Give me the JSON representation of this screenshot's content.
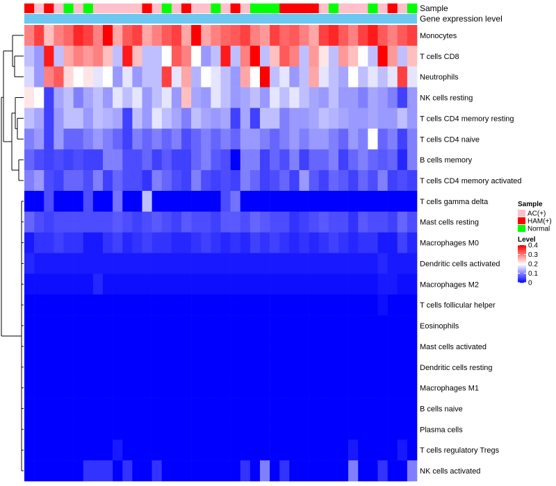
{
  "chart_data": {
    "type": "heatmap",
    "title": "",
    "color_scale": {
      "min": 0,
      "max": 0.4,
      "low": "#0000FF",
      "mid": "#FFFFFF",
      "high": "#FF0000"
    },
    "top_annotations": [
      {
        "name": "Sample"
      },
      {
        "name": "Gene expression level",
        "color": "#6CC8F0"
      }
    ],
    "samples": [
      "HAM(+)",
      "AC(+)",
      "HAM(+)",
      "AC(+)",
      "Normal",
      "AC(+)",
      "Normal",
      "AC(+)",
      "AC(+)",
      "AC(+)",
      "AC(+)",
      "AC(+)",
      "HAM(+)",
      "AC(+)",
      "Normal",
      "AC(+)",
      "HAM(+)",
      "AC(+)",
      "AC(+)",
      "Normal",
      "AC(+)",
      "HAM(+)",
      "AC(+)",
      "Normal",
      "Normal",
      "Normal",
      "HAM(+)",
      "HAM(+)",
      "HAM(+)",
      "HAM(+)",
      "AC(+)",
      "Normal",
      "AC(+)",
      "AC(+)",
      "AC(+)",
      "Normal",
      "AC(+)",
      "HAM(+)",
      "AC(+)",
      "Normal"
    ],
    "sample_colors": {
      "AC(+)": "#FFC0CB",
      "HAM(+)": "#FF0000",
      "Normal": "#00FF00"
    },
    "rows": [
      "Monocytes",
      "T cells CD8",
      "Neutrophils",
      "NK cells resting",
      "T cells CD4 memory resting",
      "T cells CD4 naive",
      "B cells memory",
      "T cells CD4 memory activated",
      "T cells gamma delta",
      "Mast cells resting",
      "Macrophages M0",
      "Dendritic cells activated",
      "Macrophages M2",
      "T cells follicular helper",
      "Eosinophils",
      "Mast cells activated",
      "Dendritic cells resting",
      "Macrophages M1",
      "B cells naive",
      "Plasma cells",
      "T cells regulatory  Tregs",
      "NK cells activated"
    ],
    "values": [
      [
        0.3,
        0.35,
        0.25,
        0.3,
        0.32,
        0.37,
        0.35,
        0.3,
        0.4,
        0.27,
        0.33,
        0.35,
        0.27,
        0.3,
        0.33,
        0.35,
        0.27,
        0.4,
        0.27,
        0.3,
        0.32,
        0.33,
        0.35,
        0.3,
        0.28,
        0.35,
        0.32,
        0.33,
        0.3,
        0.27,
        0.35,
        0.37,
        0.33,
        0.3,
        0.35,
        0.38,
        0.33,
        0.3,
        0.33,
        0.35
      ],
      [
        0.15,
        0.12,
        0.38,
        0.15,
        0.27,
        0.3,
        0.28,
        0.3,
        0.25,
        0.15,
        0.38,
        0.25,
        0.15,
        0.15,
        0.2,
        0.33,
        0.3,
        0.2,
        0.12,
        0.15,
        0.38,
        0.15,
        0.3,
        0.4,
        0.15,
        0.25,
        0.33,
        0.3,
        0.15,
        0.28,
        0.22,
        0.15,
        0.28,
        0.25,
        0.2,
        0.15,
        0.4,
        0.28,
        0.15,
        0.25
      ],
      [
        0.17,
        0.12,
        0.3,
        0.33,
        0.23,
        0.2,
        0.22,
        0.18,
        0.2,
        0.12,
        0.18,
        0.12,
        0.15,
        0.15,
        0.35,
        0.18,
        0.27,
        0.14,
        0.2,
        0.18,
        0.15,
        0.12,
        0.27,
        0.2,
        0.4,
        0.15,
        0.18,
        0.12,
        0.15,
        0.27,
        0.18,
        0.15,
        0.13,
        0.2,
        0.15,
        0.18,
        0.15,
        0.18,
        0.35,
        0.18
      ],
      [
        0.22,
        0.2,
        0.05,
        0.13,
        0.15,
        0.1,
        0.13,
        0.15,
        0.12,
        0.18,
        0.15,
        0.18,
        0.12,
        0.15,
        0.18,
        0.12,
        0.25,
        0.13,
        0.12,
        0.18,
        0.15,
        0.12,
        0.13,
        0.15,
        0.12,
        0.18,
        0.15,
        0.18,
        0.15,
        0.13,
        0.12,
        0.15,
        0.12,
        0.12,
        0.1,
        0.13,
        0.12,
        0.1,
        0.05,
        0.12
      ],
      [
        0.15,
        0.13,
        0.05,
        0.12,
        0.15,
        0.15,
        0.12,
        0.15,
        0.14,
        0.13,
        0.05,
        0.15,
        0.12,
        0.18,
        0.15,
        0.13,
        0.1,
        0.15,
        0.13,
        0.12,
        0.13,
        0.05,
        0.13,
        0.05,
        0.15,
        0.15,
        0.1,
        0.12,
        0.12,
        0.13,
        0.15,
        0.14,
        0.13,
        0.12,
        0.12,
        0.13,
        0.12,
        0.12,
        0.15,
        0.12
      ],
      [
        0.1,
        0.12,
        0.05,
        0.12,
        0.08,
        0.08,
        0.1,
        0.12,
        0.1,
        0.08,
        0.05,
        0.1,
        0.08,
        0.1,
        0.08,
        0.1,
        0.06,
        0.08,
        0.1,
        0.08,
        0.1,
        0.08,
        0.12,
        0.12,
        0.1,
        0.08,
        0.1,
        0.12,
        0.1,
        0.12,
        0.12,
        0.1,
        0.08,
        0.12,
        0.1,
        0.2,
        0.08,
        0.1,
        0.05,
        0.1
      ],
      [
        0.08,
        0.06,
        0.05,
        0.06,
        0.05,
        0.06,
        0.05,
        0.05,
        0.1,
        0.1,
        0.06,
        0.06,
        0.08,
        0.05,
        0.07,
        0.05,
        0.05,
        0.08,
        0.1,
        0.07,
        0.06,
        0.0,
        0.1,
        0.1,
        0.05,
        0.08,
        0.06,
        0.1,
        0.05,
        0.08,
        0.08,
        0.1,
        0.05,
        0.08,
        0.1,
        0.08,
        0.07,
        0.08,
        0.03,
        0.1
      ],
      [
        0.1,
        0.12,
        0.06,
        0.05,
        0.08,
        0.08,
        0.06,
        0.1,
        0.05,
        0.08,
        0.06,
        0.06,
        0.04,
        0.1,
        0.08,
        0.06,
        0.05,
        0.1,
        0.06,
        0.05,
        0.06,
        0.05,
        0.1,
        0.08,
        0.05,
        0.06,
        0.08,
        0.05,
        0.12,
        0.07,
        0.05,
        0.08,
        0.07,
        0.05,
        0.08,
        0.06,
        0.1,
        0.05,
        0.06,
        0.05
      ],
      [
        0.0,
        0.0,
        0.06,
        0.0,
        0.0,
        0.0,
        0.06,
        0.0,
        0.0,
        0.09,
        0.0,
        0.0,
        0.15,
        0.0,
        0.0,
        0.0,
        0.0,
        0.0,
        0.0,
        0.0,
        0.06,
        0.09,
        0.0,
        0.0,
        0.0,
        0.0,
        0.0,
        0.0,
        0.0,
        0.0,
        0.0,
        0.0,
        0.0,
        0.0,
        0.0,
        0.0,
        0.0,
        0.0,
        0.0,
        0.0
      ],
      [
        0.08,
        0.06,
        0.05,
        0.06,
        0.06,
        0.06,
        0.06,
        0.06,
        0.06,
        0.07,
        0.06,
        0.05,
        0.06,
        0.07,
        0.06,
        0.05,
        0.07,
        0.06,
        0.06,
        0.05,
        0.07,
        0.07,
        0.06,
        0.08,
        0.07,
        0.06,
        0.06,
        0.04,
        0.05,
        0.06,
        0.07,
        0.06,
        0.06,
        0.04,
        0.07,
        0.06,
        0.06,
        0.05,
        0.08,
        0.06
      ],
      [
        0.02,
        0.04,
        0.04,
        0.05,
        0.04,
        0.04,
        0.02,
        0.02,
        0.04,
        0.05,
        0.03,
        0.04,
        0.05,
        0.04,
        0.04,
        0.03,
        0.03,
        0.04,
        0.05,
        0.04,
        0.03,
        0.04,
        0.03,
        0.05,
        0.04,
        0.05,
        0.04,
        0.03,
        0.04,
        0.03,
        0.04,
        0.05,
        0.04,
        0.03,
        0.04,
        0.04,
        0.02,
        0.02,
        0.05,
        0.03
      ],
      [
        0.03,
        0.02,
        0.02,
        0.02,
        0.02,
        0.02,
        0.02,
        0.02,
        0.02,
        0.02,
        0.02,
        0.02,
        0.02,
        0.02,
        0.02,
        0.02,
        0.02,
        0.02,
        0.02,
        0.02,
        0.02,
        0.02,
        0.02,
        0.02,
        0.02,
        0.02,
        0.02,
        0.02,
        0.02,
        0.02,
        0.02,
        0.02,
        0.02,
        0.02,
        0.02,
        0.02,
        0.03,
        0.02,
        0.02,
        0.02
      ],
      [
        0.01,
        0.01,
        0.01,
        0.01,
        0.01,
        0.01,
        0.01,
        0.03,
        0.01,
        0.01,
        0.01,
        0.01,
        0.01,
        0.01,
        0.01,
        0.01,
        0.01,
        0.01,
        0.01,
        0.01,
        0.01,
        0.01,
        0.01,
        0.01,
        0.01,
        0.01,
        0.01,
        0.01,
        0.01,
        0.01,
        0.01,
        0.01,
        0.01,
        0.01,
        0.01,
        0.01,
        0.02,
        0.02,
        0.01,
        0.01
      ],
      [
        0.0,
        0.0,
        0.0,
        0.0,
        0.0,
        0.0,
        0.0,
        0.0,
        0.0,
        0.0,
        0.0,
        0.0,
        0.0,
        0.0,
        0.0,
        0.0,
        0.0,
        0.0,
        0.0,
        0.0,
        0.0,
        0.0,
        0.0,
        0.0,
        0.0,
        0.0,
        0.0,
        0.0,
        0.0,
        0.0,
        0.0,
        0.0,
        0.0,
        0.0,
        0.0,
        0.0,
        0.01,
        0.0,
        0.0,
        0.0
      ],
      [
        0.0,
        0.0,
        0.0,
        0.0,
        0.0,
        0.0,
        0.0,
        0.0,
        0.0,
        0.0,
        0.0,
        0.0,
        0.0,
        0.0,
        0.0,
        0.0,
        0.0,
        0.0,
        0.0,
        0.0,
        0.0,
        0.0,
        0.0,
        0.0,
        0.0,
        0.0,
        0.0,
        0.0,
        0.0,
        0.0,
        0.0,
        0.0,
        0.0,
        0.0,
        0.0,
        0.0,
        0.0,
        0.0,
        0.0,
        0.0
      ],
      [
        0.0,
        0.0,
        0.0,
        0.0,
        0.0,
        0.0,
        0.0,
        0.0,
        0.0,
        0.0,
        0.0,
        0.0,
        0.0,
        0.0,
        0.0,
        0.0,
        0.0,
        0.0,
        0.0,
        0.0,
        0.0,
        0.0,
        0.0,
        0.0,
        0.0,
        0.0,
        0.0,
        0.0,
        0.0,
        0.0,
        0.0,
        0.0,
        0.0,
        0.0,
        0.0,
        0.0,
        0.0,
        0.0,
        0.0,
        0.0
      ],
      [
        0.0,
        0.0,
        0.0,
        0.0,
        0.0,
        0.0,
        0.0,
        0.0,
        0.0,
        0.0,
        0.0,
        0.0,
        0.0,
        0.0,
        0.0,
        0.0,
        0.0,
        0.0,
        0.0,
        0.0,
        0.0,
        0.0,
        0.0,
        0.0,
        0.0,
        0.0,
        0.0,
        0.0,
        0.0,
        0.0,
        0.0,
        0.0,
        0.0,
        0.0,
        0.0,
        0.0,
        0.0,
        0.0,
        0.0,
        0.0
      ],
      [
        0.0,
        0.0,
        0.0,
        0.0,
        0.0,
        0.0,
        0.0,
        0.0,
        0.0,
        0.0,
        0.0,
        0.0,
        0.0,
        0.0,
        0.0,
        0.0,
        0.0,
        0.0,
        0.0,
        0.0,
        0.0,
        0.0,
        0.0,
        0.0,
        0.0,
        0.0,
        0.0,
        0.0,
        0.0,
        0.0,
        0.0,
        0.0,
        0.0,
        0.0,
        0.0,
        0.0,
        0.0,
        0.0,
        0.0,
        0.0
      ],
      [
        0.0,
        0.0,
        0.0,
        0.0,
        0.0,
        0.0,
        0.0,
        0.0,
        0.0,
        0.0,
        0.0,
        0.0,
        0.0,
        0.0,
        0.0,
        0.0,
        0.0,
        0.0,
        0.0,
        0.0,
        0.0,
        0.0,
        0.0,
        0.0,
        0.0,
        0.0,
        0.0,
        0.0,
        0.0,
        0.0,
        0.0,
        0.0,
        0.0,
        0.0,
        0.0,
        0.0,
        0.0,
        0.0,
        0.0,
        0.0
      ],
      [
        0.0,
        0.0,
        0.0,
        0.0,
        0.0,
        0.0,
        0.0,
        0.0,
        0.0,
        0.0,
        0.0,
        0.0,
        0.0,
        0.0,
        0.0,
        0.0,
        0.0,
        0.0,
        0.0,
        0.0,
        0.0,
        0.0,
        0.0,
        0.0,
        0.0,
        0.0,
        0.0,
        0.0,
        0.0,
        0.0,
        0.0,
        0.0,
        0.0,
        0.0,
        0.0,
        0.0,
        0.0,
        0.0,
        0.0,
        0.0
      ],
      [
        0.0,
        0.0,
        0.0,
        0.0,
        0.0,
        0.0,
        0.0,
        0.0,
        0.0,
        0.02,
        0.0,
        0.0,
        0.0,
        0.0,
        0.0,
        0.0,
        0.0,
        0.0,
        0.0,
        0.0,
        0.0,
        0.0,
        0.0,
        0.0,
        0.0,
        0.0,
        0.0,
        0.0,
        0.0,
        0.0,
        0.0,
        0.0,
        0.0,
        0.02,
        0.0,
        0.0,
        0.0,
        0.0,
        0.02,
        0.0
      ],
      [
        0.0,
        0.0,
        0.0,
        0.0,
        0.0,
        0.0,
        0.04,
        0.04,
        0.04,
        0.0,
        0.04,
        0.0,
        0.0,
        0.04,
        0.0,
        0.0,
        0.0,
        0.0,
        0.0,
        0.0,
        0.0,
        0.0,
        0.04,
        0.0,
        0.1,
        0.0,
        0.04,
        0.0,
        0.0,
        0.0,
        0.0,
        0.0,
        0.0,
        0.1,
        0.0,
        0.0,
        0.04,
        0.0,
        0.0,
        0.1
      ]
    ],
    "legend": {
      "sample_title": "Sample",
      "sample_entries": [
        {
          "label": "AC(+)",
          "color": "#FFC0CB"
        },
        {
          "label": "HAM(+)",
          "color": "#FF0000"
        },
        {
          "label": "Normal",
          "color": "#00FF00"
        }
      ],
      "level_title": "Level",
      "level_ticks": [
        "0.4",
        "0.3",
        "0.2",
        "0.1",
        "0"
      ],
      "level_tick_values": [
        0.4,
        0.3,
        0.2,
        0.1,
        0
      ]
    }
  }
}
